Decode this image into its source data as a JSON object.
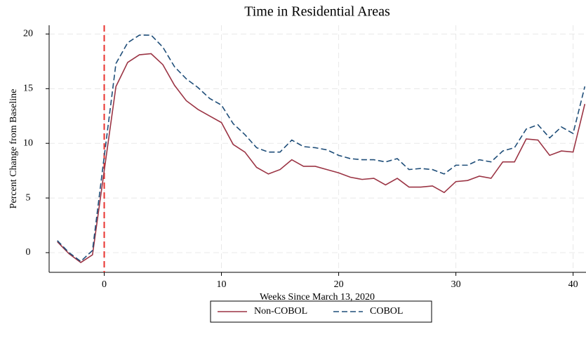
{
  "chart_data": {
    "type": "line",
    "title": "Time in Residential Areas",
    "xlabel": "Weeks Since March 13, 2020",
    "ylabel": "Percent Change from Baseline",
    "x": [
      -4,
      -3,
      -2,
      -1,
      0,
      1,
      2,
      3,
      4,
      5,
      6,
      7,
      8,
      9,
      10,
      11,
      12,
      13,
      14,
      15,
      16,
      17,
      18,
      19,
      20,
      21,
      22,
      23,
      24,
      25,
      26,
      27,
      28,
      29,
      30,
      31,
      32,
      33,
      34,
      35,
      36,
      37,
      38,
      39,
      40,
      41
    ],
    "series": [
      {
        "name": "Non-COBOL",
        "color": "#9b3444",
        "linestyle": "solid",
        "values": [
          1.0,
          -0.1,
          -0.9,
          -0.2,
          7.5,
          15.2,
          17.4,
          18.1,
          18.2,
          17.2,
          15.3,
          13.9,
          13.1,
          12.5,
          11.9,
          9.9,
          9.2,
          7.8,
          7.2,
          7.6,
          8.5,
          7.9,
          7.9,
          7.6,
          7.3,
          6.9,
          6.7,
          6.8,
          6.2,
          6.8,
          6.0,
          6.0,
          6.1,
          5.5,
          6.5,
          6.6,
          7.0,
          6.8,
          8.3,
          8.3,
          10.4,
          10.3,
          8.9,
          9.3,
          9.2,
          13.6
        ]
      },
      {
        "name": "COBOL",
        "color": "#1f4e79",
        "linestyle": "dashed",
        "values": [
          1.1,
          0.0,
          -0.8,
          0.2,
          8.8,
          17.3,
          19.2,
          19.9,
          19.9,
          18.8,
          17.0,
          15.9,
          15.1,
          14.1,
          13.5,
          11.8,
          10.8,
          9.6,
          9.2,
          9.2,
          10.3,
          9.7,
          9.6,
          9.4,
          8.9,
          8.6,
          8.5,
          8.5,
          8.3,
          8.6,
          7.6,
          7.7,
          7.6,
          7.2,
          8.0,
          8.0,
          8.5,
          8.3,
          9.3,
          9.6,
          11.3,
          11.7,
          10.5,
          11.5,
          10.9,
          15.2
        ]
      }
    ],
    "vline": {
      "x": 0,
      "color": "#e8322e"
    },
    "xlim": [
      -4.7,
      41.1
    ],
    "xticks": [
      0,
      10,
      20,
      30,
      40
    ],
    "ylim": [
      -1.8,
      20.8
    ],
    "yticks": [
      0,
      5,
      10,
      15,
      20
    ],
    "grid": true,
    "legend": "bottom"
  }
}
